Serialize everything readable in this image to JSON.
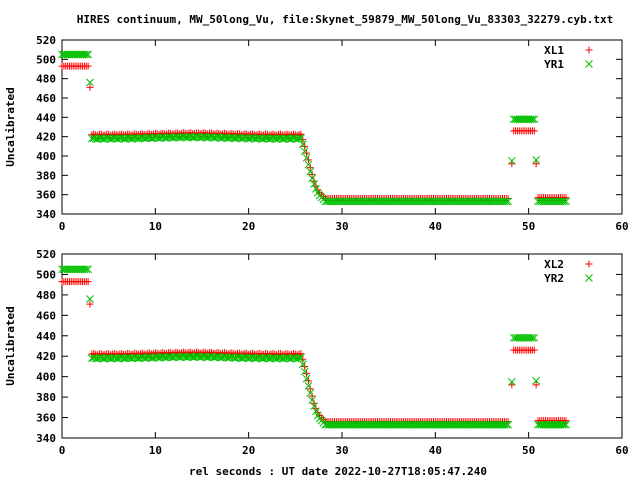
{
  "title": "HIRES continuum, MW_50long_Vu, file:Skynet_59879_MW_50long_Vu_83303_32279.cyb.txt",
  "xlabel": "rel seconds : UT date 2022-10-27T18:05:47.240",
  "colors": {
    "red_series": "#ff0000",
    "green_series": "#00c000",
    "axes": "#000000"
  },
  "chart_data": [
    {
      "type": "scatter",
      "ylabel": "Uncalibrated",
      "xlim": [
        0,
        60
      ],
      "ylim": [
        340,
        520
      ],
      "x_ticks": [
        0,
        10,
        20,
        30,
        40,
        50,
        60
      ],
      "y_ticks": [
        340,
        360,
        380,
        400,
        420,
        440,
        460,
        480,
        500,
        520
      ],
      "grid": false,
      "legend_position": "top-right",
      "series": [
        {
          "name": "XL1",
          "marker": "plus",
          "color": "#ff0000",
          "segments": [
            {
              "x_range": [
                0,
                2.9
              ],
              "step": 0.2,
              "y": 493
            },
            {
              "points": [
                [
                  3.0,
                  471
                ]
              ]
            },
            {
              "x_range": [
                3.2,
                25.6
              ],
              "step": 0.2,
              "y": 422,
              "wave": {
                "amp": 1.5,
                "center": 14
              }
            },
            {
              "points": [
                [
                  25.8,
                  417
                ],
                [
                  26.0,
                  410
                ],
                [
                  26.2,
                  403
                ],
                [
                  26.4,
                  396
                ],
                [
                  26.6,
                  388
                ],
                [
                  26.8,
                  381
                ],
                [
                  27.0,
                  374
                ],
                [
                  27.2,
                  369
                ],
                [
                  27.4,
                  365
                ],
                [
                  27.6,
                  362
                ],
                [
                  27.8,
                  360
                ],
                [
                  28.0,
                  358
                ]
              ]
            },
            {
              "x_range": [
                28.2,
                47.8
              ],
              "step": 0.2,
              "y": 356
            },
            {
              "points": [
                [
                  48.2,
                  392
                ]
              ]
            },
            {
              "x_range": [
                48.4,
                50.6
              ],
              "step": 0.2,
              "y": 426
            },
            {
              "points": [
                [
                  50.8,
                  392
                ]
              ]
            },
            {
              "x_range": [
                51.0,
                54.0
              ],
              "step": 0.2,
              "y": 357
            }
          ]
        },
        {
          "name": "YR1",
          "marker": "cross",
          "color": "#00c000",
          "segments": [
            {
              "x_range": [
                0,
                2.9
              ],
              "step": 0.2,
              "y": 505
            },
            {
              "points": [
                [
                  3.0,
                  476
                ]
              ]
            },
            {
              "x_range": [
                3.2,
                25.6
              ],
              "step": 0.2,
              "y": 418,
              "wave": {
                "amp": 1.5,
                "center": 14
              }
            },
            {
              "points": [
                [
                  25.8,
                  412
                ],
                [
                  26.0,
                  405
                ],
                [
                  26.2,
                  398
                ],
                [
                  26.4,
                  391
                ],
                [
                  26.6,
                  384
                ],
                [
                  26.8,
                  377
                ],
                [
                  27.0,
                  371
                ],
                [
                  27.2,
                  366
                ],
                [
                  27.4,
                  362
                ],
                [
                  27.6,
                  359
                ],
                [
                  27.8,
                  357
                ],
                [
                  28.0,
                  355
                ]
              ]
            },
            {
              "x_range": [
                28.2,
                47.8
              ],
              "step": 0.2,
              "y": 353
            },
            {
              "points": [
                [
                  48.2,
                  395
                ]
              ]
            },
            {
              "x_range": [
                48.4,
                50.6
              ],
              "step": 0.2,
              "y": 438
            },
            {
              "points": [
                [
                  50.8,
                  396
                ]
              ]
            },
            {
              "x_range": [
                51.0,
                54.0
              ],
              "step": 0.2,
              "y": 353
            }
          ]
        }
      ]
    },
    {
      "type": "scatter",
      "ylabel": "Uncalibrated",
      "xlim": [
        0,
        60
      ],
      "ylim": [
        340,
        520
      ],
      "x_ticks": [
        0,
        10,
        20,
        30,
        40,
        50,
        60
      ],
      "y_ticks": [
        340,
        360,
        380,
        400,
        420,
        440,
        460,
        480,
        500,
        520
      ],
      "grid": false,
      "legend_position": "top-right",
      "series": [
        {
          "name": "XL2",
          "marker": "plus",
          "color": "#ff0000",
          "segments": [
            {
              "x_range": [
                0,
                2.9
              ],
              "step": 0.2,
              "y": 493
            },
            {
              "points": [
                [
                  3.0,
                  471
                ]
              ]
            },
            {
              "x_range": [
                3.2,
                25.6
              ],
              "step": 0.2,
              "y": 422,
              "wave": {
                "amp": 1.5,
                "center": 14
              }
            },
            {
              "points": [
                [
                  25.8,
                  417
                ],
                [
                  26.0,
                  410
                ],
                [
                  26.2,
                  403
                ],
                [
                  26.4,
                  396
                ],
                [
                  26.6,
                  388
                ],
                [
                  26.8,
                  381
                ],
                [
                  27.0,
                  374
                ],
                [
                  27.2,
                  369
                ],
                [
                  27.4,
                  365
                ],
                [
                  27.6,
                  362
                ],
                [
                  27.8,
                  360
                ],
                [
                  28.0,
                  358
                ]
              ]
            },
            {
              "x_range": [
                28.2,
                47.8
              ],
              "step": 0.2,
              "y": 356
            },
            {
              "points": [
                [
                  48.2,
                  392
                ]
              ]
            },
            {
              "x_range": [
                48.4,
                50.6
              ],
              "step": 0.2,
              "y": 426
            },
            {
              "points": [
                [
                  50.8,
                  392
                ]
              ]
            },
            {
              "x_range": [
                51.0,
                54.0
              ],
              "step": 0.2,
              "y": 357
            }
          ]
        },
        {
          "name": "YR2",
          "marker": "cross",
          "color": "#00c000",
          "segments": [
            {
              "x_range": [
                0,
                2.9
              ],
              "step": 0.2,
              "y": 505
            },
            {
              "points": [
                [
                  3.0,
                  476
                ]
              ]
            },
            {
              "x_range": [
                3.2,
                25.6
              ],
              "step": 0.2,
              "y": 418,
              "wave": {
                "amp": 1.5,
                "center": 14
              }
            },
            {
              "points": [
                [
                  25.8,
                  412
                ],
                [
                  26.0,
                  405
                ],
                [
                  26.2,
                  398
                ],
                [
                  26.4,
                  391
                ],
                [
                  26.6,
                  384
                ],
                [
                  26.8,
                  377
                ],
                [
                  27.0,
                  371
                ],
                [
                  27.2,
                  366
                ],
                [
                  27.4,
                  362
                ],
                [
                  27.6,
                  359
                ],
                [
                  27.8,
                  357
                ],
                [
                  28.0,
                  355
                ]
              ]
            },
            {
              "x_range": [
                28.2,
                47.8
              ],
              "step": 0.2,
              "y": 353
            },
            {
              "points": [
                [
                  48.2,
                  395
                ]
              ]
            },
            {
              "x_range": [
                48.4,
                50.6
              ],
              "step": 0.2,
              "y": 438
            },
            {
              "points": [
                [
                  50.8,
                  396
                ]
              ]
            },
            {
              "x_range": [
                51.0,
                54.0
              ],
              "step": 0.2,
              "y": 353
            }
          ]
        }
      ]
    }
  ]
}
